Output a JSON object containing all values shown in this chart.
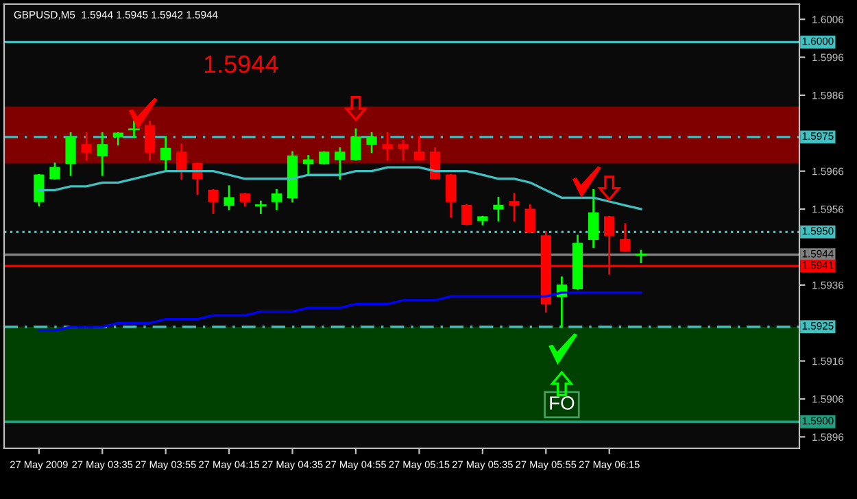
{
  "chart_data": {
    "type": "candlestick",
    "title": "GBPUSD,M5  1.5944 1.5945 1.5942 1.5944",
    "annotations": [
      "1.5944",
      "FO"
    ],
    "categories": [
      "27 May 2009",
      null,
      null,
      null,
      "27 May 03:35",
      null,
      null,
      null,
      "27 May 03:55",
      null,
      null,
      null,
      "27 May 04:15",
      null,
      null,
      null,
      "27 May 04:35",
      null,
      null,
      null,
      "27 May 04:55",
      null,
      null,
      null,
      "27 May 05:15",
      null,
      null,
      null,
      "27 May 05:35",
      null,
      null,
      null,
      "27 May 05:55",
      null,
      null,
      null,
      "27 May 06:15",
      null,
      null
    ],
    "ohlc": [
      [
        1.5958,
        1.5965,
        1.5957,
        1.5965
      ],
      [
        1.5964,
        1.5968,
        1.5964,
        1.5967
      ],
      [
        1.5968,
        1.5976,
        1.5965,
        1.5975
      ],
      [
        1.5973,
        1.5976,
        1.5969,
        1.5971
      ],
      [
        1.597,
        1.5976,
        1.5965,
        1.5973
      ],
      [
        1.5975,
        1.5976,
        1.5973,
        1.5976
      ],
      [
        1.5977,
        1.5979,
        1.5975,
        1.5977
      ],
      [
        1.5978,
        1.5979,
        1.5969,
        1.5971
      ],
      [
        1.5969,
        1.5975,
        1.5966,
        1.5972
      ],
      [
        1.5971,
        1.5973,
        1.5964,
        1.5966
      ],
      [
        1.5968,
        1.5968,
        1.596,
        1.5964
      ],
      [
        1.5961,
        1.5961,
        1.5955,
        1.5958
      ],
      [
        1.5957,
        1.5962,
        1.5956,
        1.5959
      ],
      [
        1.596,
        1.596,
        1.5957,
        1.5958
      ],
      [
        1.5957,
        1.5958,
        1.5955,
        1.5957
      ],
      [
        1.5958,
        1.5961,
        1.5956,
        1.596
      ],
      [
        1.5959,
        1.5971,
        1.5958,
        1.597
      ],
      [
        1.5968,
        1.597,
        1.5965,
        1.5969
      ],
      [
        1.5968,
        1.5971,
        1.5968,
        1.5971
      ],
      [
        1.5969,
        1.5972,
        1.5964,
        1.5971
      ],
      [
        1.5969,
        1.5977,
        1.5969,
        1.5975
      ],
      [
        1.5973,
        1.5976,
        1.5971,
        1.5975
      ],
      [
        1.5973,
        1.5976,
        1.5969,
        1.5972
      ],
      [
        1.5973,
        1.5974,
        1.5969,
        1.5972
      ],
      [
        1.5971,
        1.5975,
        1.5969,
        1.5969
      ],
      [
        1.5971,
        1.5972,
        1.5964,
        1.5964
      ],
      [
        1.5965,
        1.5965,
        1.5954,
        1.5958
      ],
      [
        1.5957,
        1.5957,
        1.5952,
        1.5952
      ],
      [
        1.5953,
        1.5954,
        1.5952,
        1.5954
      ],
      [
        1.5956,
        1.5959,
        1.5953,
        1.5957
      ],
      [
        1.5958,
        1.596,
        1.5953,
        1.5957
      ],
      [
        1.5956,
        1.5957,
        1.595,
        1.595
      ],
      [
        1.5949,
        1.595,
        1.5929,
        1.5931
      ],
      [
        1.5933,
        1.5938,
        1.5925,
        1.5936
      ],
      [
        1.5935,
        1.5949,
        1.5935,
        1.5947
      ],
      [
        1.5948,
        1.5961,
        1.5946,
        1.5955
      ],
      [
        1.5954,
        1.5954,
        1.5939,
        1.5949
      ],
      [
        1.5948,
        1.5952,
        1.5945,
        1.5945
      ],
      [
        1.5944,
        1.5945,
        1.5942,
        1.5944
      ]
    ],
    "colors": [
      "#00ff00",
      "#00ff00",
      "#00ff00",
      "#ff0000",
      "#00ff00",
      "#00ff00",
      "#00ff00",
      "#ff0000",
      "#00ff00",
      "#ff0000",
      "#ff0000",
      "#ff0000",
      "#00ff00",
      "#ff0000",
      "#00ff00",
      "#00ff00",
      "#00ff00",
      "#00ff00",
      "#00ff00",
      "#00ff00",
      "#00ff00",
      "#00ff00",
      "#ff0000",
      "#ff0000",
      "#ff0000",
      "#ff0000",
      "#ff0000",
      "#ff0000",
      "#00ff00",
      "#00ff00",
      "#ff0000",
      "#ff0000",
      "#ff0000",
      "#00ff00",
      "#00ff00",
      "#00ff00",
      "#ff0000",
      "#ff0000",
      "#00ff00"
    ],
    "series": [
      {
        "type": "line",
        "color": "#40c0c0",
        "values": [
          1.5961,
          1.5961,
          1.5962,
          1.5962,
          1.5963,
          1.5963,
          1.5964,
          1.5965,
          1.5966,
          1.5966,
          1.5966,
          1.5966,
          1.5965,
          1.5964,
          1.5964,
          1.5964,
          1.5964,
          1.5965,
          1.5965,
          1.5965,
          1.5966,
          1.5966,
          1.5967,
          1.5967,
          1.5967,
          1.5966,
          1.5966,
          1.5966,
          1.5965,
          1.5964,
          1.5964,
          1.5963,
          1.5961,
          1.5959,
          1.5959,
          1.5959,
          1.5958,
          1.5957,
          1.5956
        ]
      },
      {
        "type": "line",
        "color": "#0000ff",
        "values": [
          1.5924,
          1.5924,
          1.5925,
          1.5925,
          1.5925,
          1.5926,
          1.5926,
          1.5926,
          1.5927,
          1.5927,
          1.5927,
          1.5928,
          1.5928,
          1.5928,
          1.5929,
          1.5929,
          1.5929,
          1.593,
          1.593,
          1.593,
          1.5931,
          1.5931,
          1.5931,
          1.5932,
          1.5932,
          1.5932,
          1.5933,
          1.5933,
          1.5933,
          1.5933,
          1.5933,
          1.5933,
          1.5933,
          1.5934,
          1.5934,
          1.5934,
          1.5934,
          1.5934,
          1.5934
        ]
      }
    ],
    "ylim": [
      1.5893,
      1.601
    ],
    "yticks": [
      1.6006,
      1.5996,
      1.5986,
      1.5966,
      1.5956,
      1.5936,
      1.5916,
      1.5906,
      1.5896
    ],
    "bands": [
      {
        "axis": "y",
        "from": 1.5968,
        "to": 1.5983,
        "color": "#800000"
      },
      {
        "axis": "y",
        "from": 1.59,
        "to": 1.5925,
        "color": "#004000"
      }
    ],
    "ref_lines": [
      {
        "axis": "y",
        "value": 1.6,
        "label": "1.6000",
        "color": "#40c0c0",
        "line_style": "solid"
      },
      {
        "axis": "y",
        "value": 1.5975,
        "label": "1.5975",
        "color": "#40c0c0",
        "line_style": "dashed"
      },
      {
        "axis": "y",
        "value": 1.595,
        "label": "1.5950",
        "color": "#40c0c0",
        "line_style": "dotted"
      },
      {
        "axis": "y",
        "value": 1.5944,
        "label": "1.5944",
        "color": "#808080",
        "line_style": "solid"
      },
      {
        "axis": "y",
        "value": 1.5941,
        "label": "1.5941",
        "color": "#ff0000",
        "line_style": "solid"
      },
      {
        "axis": "y",
        "value": 1.5925,
        "label": "1.5925",
        "color": "#40c0c0",
        "line_style": "dashed"
      },
      {
        "axis": "y",
        "value": 1.59,
        "label": "1.5900",
        "color": "#20a080",
        "line_style": "solid"
      }
    ],
    "grid": false
  }
}
